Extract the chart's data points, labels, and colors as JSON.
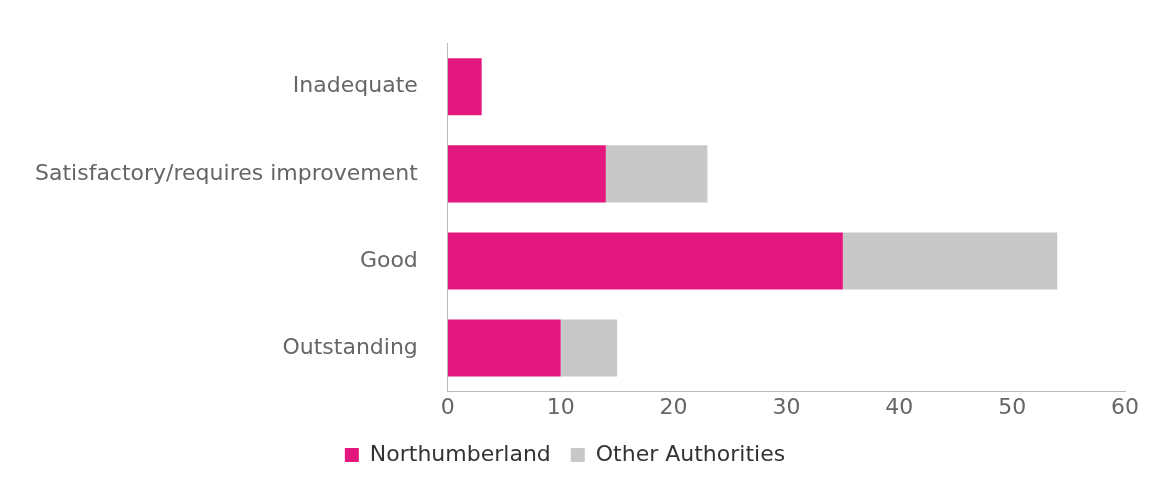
{
  "chart_data": {
    "type": "bar",
    "orientation": "horizontal",
    "stacked": true,
    "categories": [
      "Inadequate",
      "Satisfactory/requires improvement",
      "Good",
      "Outstanding"
    ],
    "series": [
      {
        "name": "Northumberland",
        "color": "#e2187f",
        "values": [
          3,
          14,
          35,
          10
        ]
      },
      {
        "name": "Other Authorities",
        "color": "#c8c8c8",
        "values": [
          0,
          9,
          19,
          5
        ]
      }
    ],
    "xlim": [
      0,
      60
    ],
    "xticks": [
      0,
      10,
      20,
      30,
      40,
      50,
      60
    ],
    "grid": false,
    "legend": "bottom"
  }
}
